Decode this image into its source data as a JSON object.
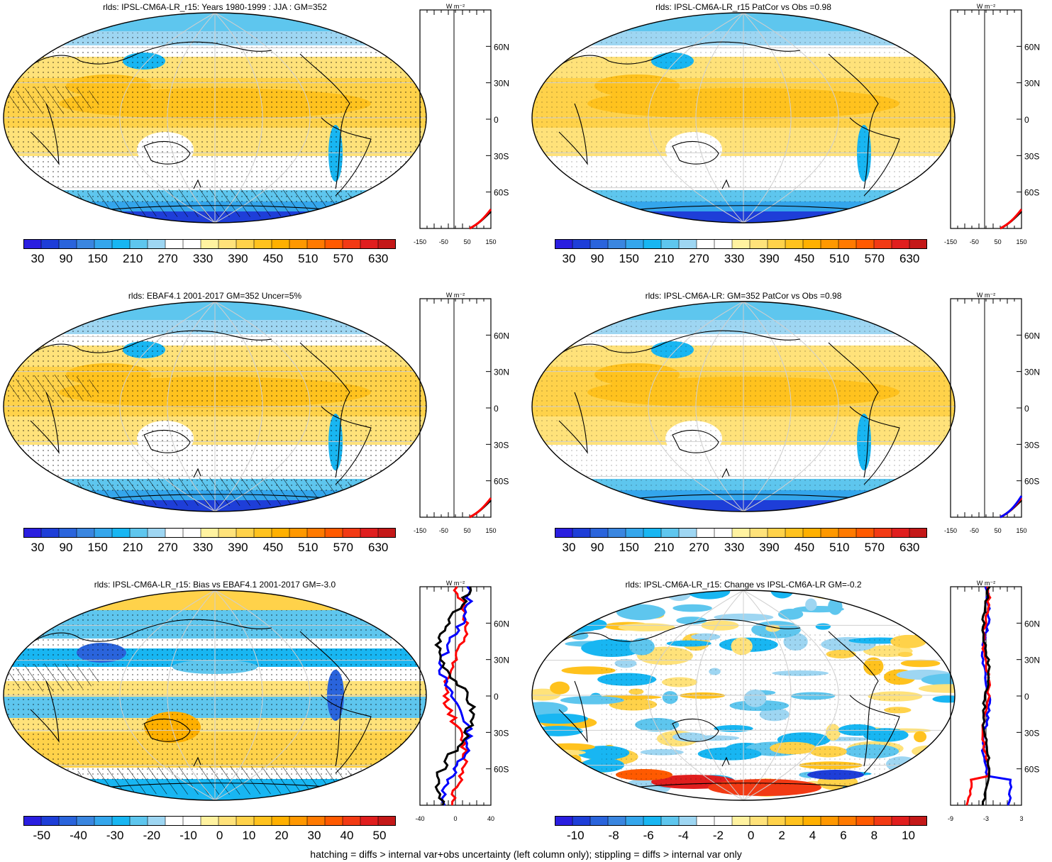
{
  "colors": {
    "ocean_white": "#ffffff",
    "land_line": "#000000",
    "grid": "#cfcfcf",
    "zonal_red": "#ff0000",
    "zonal_blue": "#0000ff",
    "zonal_black": "#000000"
  },
  "palette_abs": [
    "#2a1ee0",
    "#1e3ed8",
    "#2a64dc",
    "#3a86e0",
    "#34a6ec",
    "#18b6f2",
    "#5ec6ee",
    "#9ed6f2",
    "#ffffff",
    "#ffffff",
    "#fff2a0",
    "#ffe27a",
    "#ffd24a",
    "#ffc21e",
    "#ffb000",
    "#ff9800",
    "#ff7a00",
    "#ff5a00",
    "#f23a14",
    "#e01e1e",
    "#c41818"
  ],
  "palette_diff": [
    "#2a1ee0",
    "#1e3ed8",
    "#2a64dc",
    "#3a86e0",
    "#34a6ec",
    "#18b6f2",
    "#5ec6ee",
    "#9ed6f2",
    "#ffffff",
    "#ffffff",
    "#fff2a0",
    "#ffe27a",
    "#ffd24a",
    "#ffc21e",
    "#ffb000",
    "#ff9800",
    "#ff7a00",
    "#ff5a00",
    "#f23a14",
    "#e01e1e",
    "#c41818"
  ],
  "panels": [
    {
      "title": "rlds: IPSL-CM6A-LR_r15: Years 1980-1999 : JJA : GM=352",
      "cbar_labels": [
        "30",
        "90",
        "150",
        "210",
        "270",
        "330",
        "390",
        "450",
        "510",
        "570",
        "630"
      ],
      "zonal_unit": "W m⁻²",
      "zonal_xticks": [
        "-150",
        "-50",
        "50",
        "150"
      ],
      "lat_labels": [
        "60N",
        "30N",
        "0",
        "30S",
        "60S"
      ]
    },
    {
      "title": "rlds: IPSL-CM6A-LR_r15 PatCor vs Obs =0.98",
      "cbar_labels": [
        "30",
        "90",
        "150",
        "210",
        "270",
        "330",
        "390",
        "450",
        "510",
        "570",
        "630"
      ],
      "zonal_unit": "W m⁻²",
      "zonal_xticks": [
        "-150",
        "-50",
        "50",
        "150"
      ],
      "lat_labels": [
        "60N",
        "30N",
        "0",
        "30S",
        "60S"
      ]
    },
    {
      "title": "rlds: EBAF4.1 2001-2017 GM=352 Uncer=5%",
      "cbar_labels": [
        "30",
        "90",
        "150",
        "210",
        "270",
        "330",
        "390",
        "450",
        "510",
        "570",
        "630"
      ],
      "zonal_unit": "W m⁻²",
      "zonal_xticks": [
        "-150",
        "-50",
        "50",
        "150"
      ],
      "lat_labels": [
        "60N",
        "30N",
        "0",
        "30S",
        "60S"
      ]
    },
    {
      "title": "rlds: IPSL-CM6A-LR: GM=352 PatCor vs Obs =0.98",
      "cbar_labels": [
        "30",
        "90",
        "150",
        "210",
        "270",
        "330",
        "390",
        "450",
        "510",
        "570",
        "630"
      ],
      "zonal_unit": "W m⁻²",
      "zonal_xticks": [
        "-150",
        "-50",
        "50",
        "150"
      ],
      "lat_labels": [
        "60N",
        "30N",
        "0",
        "30S",
        "60S"
      ]
    },
    {
      "title": "rlds: IPSL-CM6A-LR_r15: Bias vs EBAF4.1 2001-2017 GM=-3.0",
      "cbar_labels": [
        "-50",
        "-40",
        "-30",
        "-20",
        "-10",
        "0",
        "10",
        "20",
        "30",
        "40",
        "50"
      ],
      "zonal_unit": "W m⁻²",
      "zonal_xticks": [
        "-40",
        "0",
        "40"
      ],
      "lat_labels": [
        "60N",
        "30N",
        "0",
        "30S",
        "60S"
      ]
    },
    {
      "title": "rlds: IPSL-CM6A-LR_r15: Change vs IPSL-CM6A-LR GM=-0.2",
      "cbar_labels": [
        "-10",
        "-8",
        "-6",
        "-4",
        "-2",
        "0",
        "2",
        "4",
        "6",
        "8",
        "10"
      ],
      "zonal_unit": "W m⁻²",
      "zonal_xticks": [
        "-9",
        "-3",
        "3"
      ],
      "lat_labels": [
        "60N",
        "30N",
        "0",
        "30S",
        "60S"
      ]
    }
  ],
  "footer": "hatching = diffs > internal var+obs uncertainty (left column only); stippling = diffs > internal var only"
}
